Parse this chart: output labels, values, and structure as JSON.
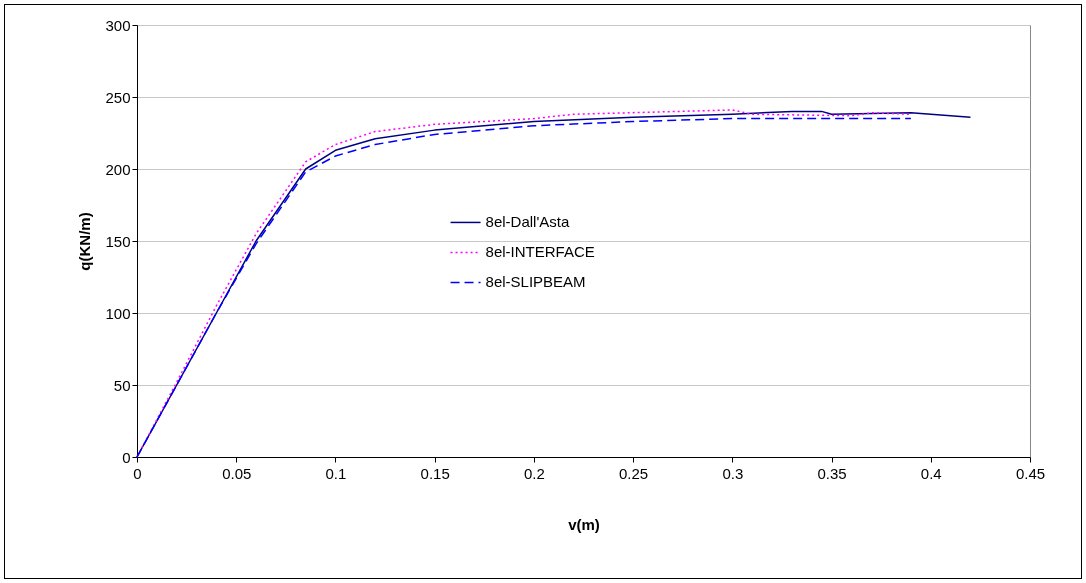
{
  "chart_data": {
    "type": "line",
    "xlabel": "v(m)",
    "ylabel": "q(KN/m)",
    "xlim": [
      0,
      0.45
    ],
    "xticks": [
      0,
      0.05,
      0.1,
      0.15,
      0.2,
      0.25,
      0.3,
      0.35,
      0.4,
      0.45
    ],
    "ylim": [
      0,
      300
    ],
    "yticks": [
      0,
      50,
      100,
      150,
      200,
      250,
      300
    ],
    "grid": "y",
    "legend": "center",
    "marker": "none",
    "series": [
      {
        "name": "8el-Dall'Asta",
        "color": "#000080",
        "line_style": "solid",
        "x": [
          0,
          0.02,
          0.04,
          0.06,
          0.085,
          0.1,
          0.12,
          0.15,
          0.2,
          0.25,
          0.3,
          0.33,
          0.345,
          0.35,
          0.39,
          0.42
        ],
        "values": [
          0,
          50,
          100,
          150,
          200,
          213,
          221,
          227,
          233,
          236,
          238,
          240,
          240,
          238,
          239,
          236
        ]
      },
      {
        "name": "8el-INTERFACE",
        "color": "#ff00ff",
        "line_style": "dotted",
        "x": [
          0,
          0.02,
          0.04,
          0.06,
          0.085,
          0.1,
          0.12,
          0.15,
          0.2,
          0.22,
          0.3,
          0.31,
          0.36,
          0.37,
          0.39
        ],
        "values": [
          0,
          52,
          105,
          155,
          205,
          217,
          226,
          231,
          235,
          238,
          241,
          238,
          237,
          239,
          238
        ]
      },
      {
        "name": "8el-SLIPBEAM",
        "color": "#0000ff",
        "line_style": "dashed",
        "x": [
          0,
          0.02,
          0.04,
          0.06,
          0.085,
          0.1,
          0.12,
          0.15,
          0.2,
          0.25,
          0.3,
          0.35,
          0.39
        ],
        "values": [
          0,
          50,
          100,
          148,
          198,
          209,
          217,
          224,
          230,
          233,
          235,
          235,
          235
        ]
      }
    ]
  }
}
